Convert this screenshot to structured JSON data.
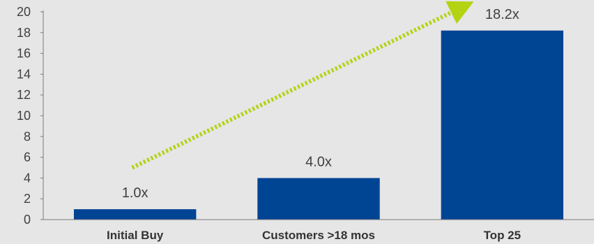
{
  "chart_data": {
    "type": "bar",
    "categories": [
      "Initial Buy",
      "Customers >18 mos",
      "Top 25"
    ],
    "values": [
      1.0,
      4.0,
      18.2
    ],
    "data_labels": [
      "1.0x",
      "4.0x",
      "18.2x"
    ],
    "title": "",
    "xlabel": "",
    "ylabel": "",
    "ylim": [
      0,
      20
    ],
    "yticks": [
      0,
      2,
      4,
      6,
      8,
      10,
      12,
      14,
      16,
      18,
      20
    ],
    "grid": false,
    "legend": "none",
    "annotations": [
      {
        "type": "dotted-arrow",
        "from_category": "Initial Buy",
        "from_value": 5,
        "to_category": "Top 25",
        "to_value": 21
      }
    ],
    "colors": {
      "bar": "#004494",
      "arrow": "#b3d313",
      "axis": "#7a7a7a",
      "background": "#e6e6e6"
    }
  }
}
